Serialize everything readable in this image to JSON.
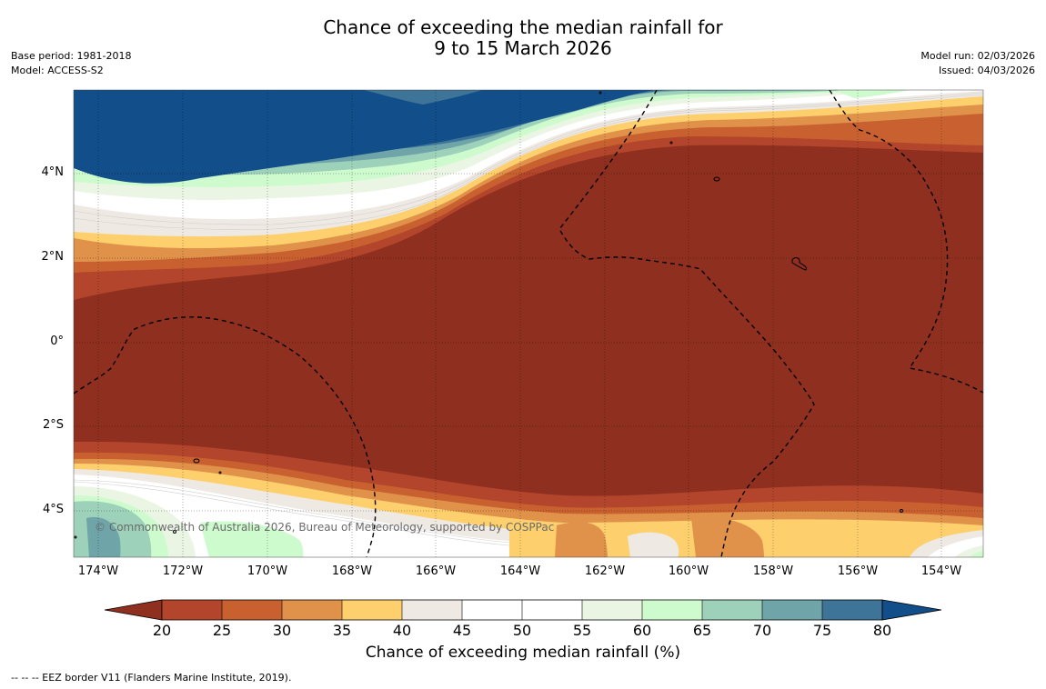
{
  "title": {
    "line1": "Chance of exceeding the median rainfall for",
    "line2": "9 to 15 March 2026"
  },
  "meta": {
    "base_period": "Base period: 1981-2018",
    "model": "Model: ACCESS-S2",
    "model_run": "Model run: 02/03/2026",
    "issued": "Issued: 04/03/2026"
  },
  "map": {
    "copyright": "© Commonwealth of Australia 2026, Bureau of Meteorology, supported by COSPPac",
    "lat_labels": [
      "4°N",
      "2°N",
      "0°",
      "2°S",
      "4°S"
    ],
    "lon_labels": [
      "174°W",
      "172°W",
      "170°W",
      "168°W",
      "166°W",
      "164°W",
      "162°W",
      "160°W",
      "158°W",
      "156°W",
      "154°W"
    ],
    "lon_range": [
      -174.6,
      -153.1
    ],
    "lat_range": [
      -5.1,
      5.9
    ]
  },
  "colorbar": {
    "ticks": [
      "20",
      "25",
      "30",
      "35",
      "40",
      "45",
      "50",
      "55",
      "60",
      "65",
      "70",
      "75",
      "80"
    ],
    "colors": {
      "under": "#8f2f1f",
      "b20_25": "#b2452b",
      "b25_30": "#c8612f",
      "b30_35": "#e0914a",
      "b35_40": "#fdd06d",
      "b40_45": "#efe9e4",
      "b45_50": "#ffffff",
      "b50_55": "#ffffff",
      "b55_60": "#eaf5e4",
      "b60_65": "#cdfbcd",
      "b65_70": "#9dd1ba",
      "b70_75": "#6fa4a9",
      "b75_80": "#3e7498",
      "over": "#124e89"
    },
    "label": "Chance of exceeding median rainfall (%)"
  },
  "footer": "--  --  -- EEZ border V11 (Flanders Marine Institute, 2019)."
}
